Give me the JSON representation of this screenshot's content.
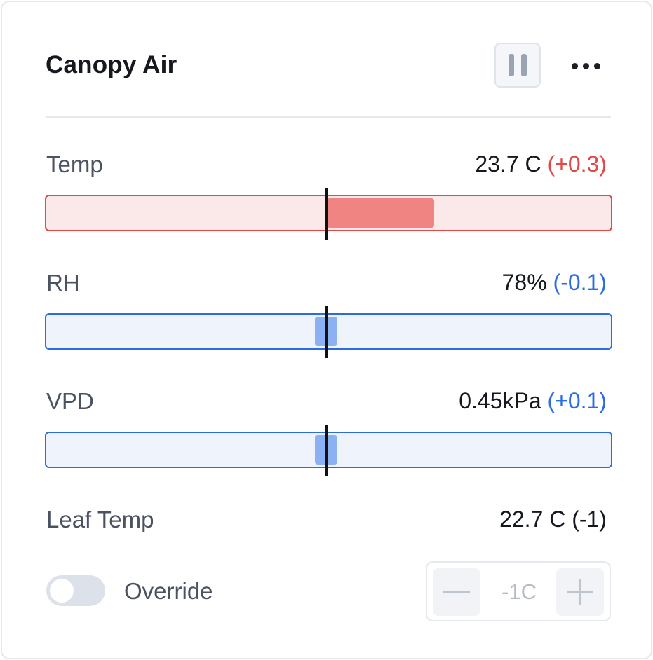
{
  "card": {
    "title": "Canopy Air",
    "actions": {
      "pause_icon": "pause-icon",
      "more_icon": "more-horizontal-icon"
    }
  },
  "metrics": [
    {
      "label": "Temp",
      "value": "23.7 C",
      "delta": "(+0.3)",
      "delta_color": "#e14848",
      "status": "above",
      "bar_fill_fraction": 0.19
    },
    {
      "label": "RH",
      "value": "78%",
      "delta": "(-0.1)",
      "delta_color": "#2a6de0",
      "status": "near",
      "bar_fill_fraction": 0.04
    },
    {
      "label": "VPD",
      "value": "0.45kPa",
      "delta": "(+0.1)",
      "delta_color": "#2a6de0",
      "status": "near",
      "bar_fill_fraction": 0.04
    }
  ],
  "leaf_temp": {
    "label": "Leaf Temp",
    "value": "22.7 C (-1)"
  },
  "override": {
    "label": "Override",
    "enabled": false,
    "stepper_value": "-1C",
    "minus_icon": "minus-icon",
    "plus_icon": "plus-icon"
  },
  "colors": {
    "warn": "#e14848",
    "ok": "#2a6de0",
    "warn_fill": "#ef8483",
    "ok_fill": "#8bb0f4"
  }
}
